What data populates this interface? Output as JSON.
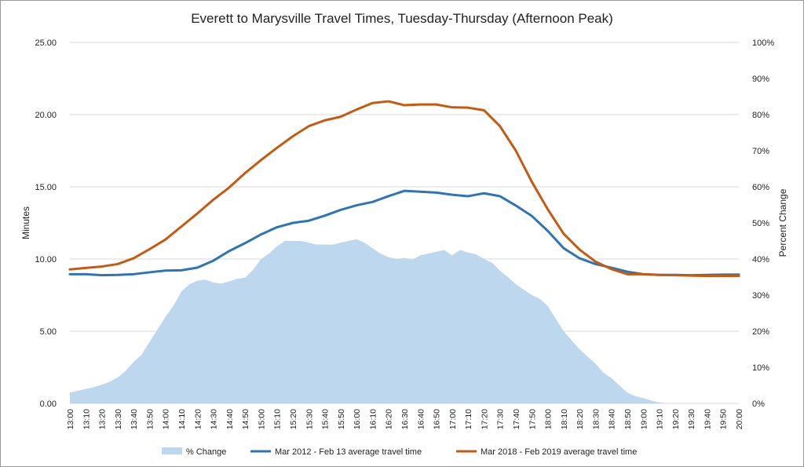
{
  "chart_data": {
    "type": "line",
    "title": "Everett to Marysville Travel Times, Tuesday-Thursday  (Afternoon Peak)",
    "ylabel": "Minutes",
    "y2label": "Percent Change",
    "ylim": [
      0,
      25
    ],
    "y2lim": [
      0,
      100
    ],
    "yticks": [
      "0.00",
      "5.00",
      "10.00",
      "15.00",
      "20.00",
      "25.00"
    ],
    "y2ticks": [
      "0%",
      "10%",
      "20%",
      "30%",
      "40%",
      "50%",
      "60%",
      "70%",
      "80%",
      "90%",
      "100%"
    ],
    "categories": [
      "13:00",
      "13:10",
      "13:20",
      "13:30",
      "13:40",
      "13:50",
      "14:00",
      "14:10",
      "14:20",
      "14:30",
      "14:40",
      "14:50",
      "15:00",
      "15:10",
      "15:20",
      "15:30",
      "15:40",
      "15:50",
      "16:00",
      "16:10",
      "16:20",
      "16:30",
      "16:40",
      "16:50",
      "17:00",
      "17:10",
      "17:20",
      "17:30",
      "17:40",
      "17:50",
      "18:00",
      "18:10",
      "18:20",
      "18:30",
      "18:40",
      "18:50",
      "19:00",
      "19:10",
      "19:20",
      "19:30",
      "19:40",
      "19:50",
      "20:00"
    ],
    "series": [
      {
        "name": "% Change",
        "kind": "area",
        "axis": "right",
        "color": "#bdd7ee",
        "x": [
          13.0,
          13.0833,
          13.1667,
          13.25,
          13.3333,
          13.4167,
          13.5,
          13.5833,
          13.6667,
          13.75,
          13.8333,
          13.9167,
          14.0,
          14.0833,
          14.1667,
          14.25,
          14.3333,
          14.4167,
          14.5,
          14.5833,
          14.6667,
          14.75,
          14.8333,
          14.9167,
          15.0,
          15.0833,
          15.1667,
          15.25,
          15.3333,
          15.4167,
          15.5,
          15.5833,
          15.6667,
          15.75,
          15.8333,
          15.9167,
          16.0,
          16.0833,
          16.1667,
          16.25,
          16.3333,
          16.4167,
          16.5,
          16.5833,
          16.6667,
          16.75,
          16.8333,
          16.9167,
          17.0,
          17.0833,
          17.1667,
          17.25,
          17.3333,
          17.4167,
          17.5,
          17.5833,
          17.6667,
          17.75,
          17.8333,
          17.9167,
          18.0,
          18.0833,
          18.1667,
          18.25,
          18.3333,
          18.4167,
          18.5,
          18.5833,
          18.6667,
          18.75,
          18.8333,
          18.9167,
          19.0,
          19.0833,
          19.1667,
          19.25,
          19.3333,
          19.4167,
          19.5,
          19.5833,
          19.6667,
          19.75,
          19.8333,
          19.9167,
          20.0
        ],
        "values": [
          3,
          3.5,
          4,
          4.5,
          5.2,
          6,
          7.2,
          9,
          11.5,
          13.5,
          17,
          20.5,
          24,
          27,
          31,
          33,
          34,
          34.3,
          33.5,
          33.2,
          33.8,
          34.5,
          34.8,
          37,
          40,
          41.5,
          43.5,
          45,
          45,
          45,
          44.5,
          44,
          44,
          44,
          44.5,
          45,
          45.5,
          44.5,
          43,
          41.5,
          40.5,
          40,
          40.3,
          39.8,
          41,
          41.5,
          42,
          42.5,
          41,
          42.5,
          41.8,
          41.3,
          40,
          39,
          36.8,
          35,
          33,
          31.5,
          30,
          29,
          27,
          23.5,
          20,
          17.5,
          15,
          13,
          11,
          8.5,
          7,
          5,
          3,
          2,
          1.5,
          0.8,
          0.3,
          0,
          0,
          0,
          0,
          0,
          0,
          0,
          0,
          0,
          0
        ]
      },
      {
        "name": "Mar 2012 - Feb 13 average travel time",
        "kind": "line",
        "axis": "left",
        "color": "#2e75b6",
        "values": [
          8.95,
          8.95,
          8.88,
          8.9,
          8.95,
          9.08,
          9.2,
          9.22,
          9.4,
          9.88,
          10.55,
          11.1,
          11.7,
          12.2,
          12.5,
          12.65,
          13,
          13.4,
          13.72,
          13.95,
          14.35,
          14.72,
          14.66,
          14.6,
          14.45,
          14.35,
          14.55,
          14.35,
          13.7,
          12.98,
          11.95,
          10.75,
          10.05,
          9.65,
          9.4,
          9.12,
          8.95,
          8.9,
          8.9,
          8.88,
          8.9,
          8.92,
          8.92
        ]
      },
      {
        "name": "Mar 2018 - Feb 2019 average travel time",
        "kind": "line",
        "axis": "left",
        "color": "#c55a11",
        "values": [
          9.28,
          9.38,
          9.48,
          9.65,
          10.05,
          10.68,
          11.35,
          12.25,
          13.15,
          14.1,
          14.95,
          15.95,
          16.85,
          17.7,
          18.5,
          19.2,
          19.6,
          19.85,
          20.35,
          20.8,
          20.92,
          20.65,
          20.7,
          20.7,
          20.5,
          20.48,
          20.3,
          19.2,
          17.5,
          15.35,
          13.45,
          11.75,
          10.65,
          9.82,
          9.3,
          8.95,
          8.95,
          8.9,
          8.88,
          8.85,
          8.83,
          8.83,
          8.83
        ]
      }
    ],
    "legend": [
      "% Change",
      "Mar 2012 - Feb 13 average travel time",
      "Mar 2018 - Feb 2019 average travel time"
    ],
    "legend_position": "bottom",
    "grid": true
  }
}
